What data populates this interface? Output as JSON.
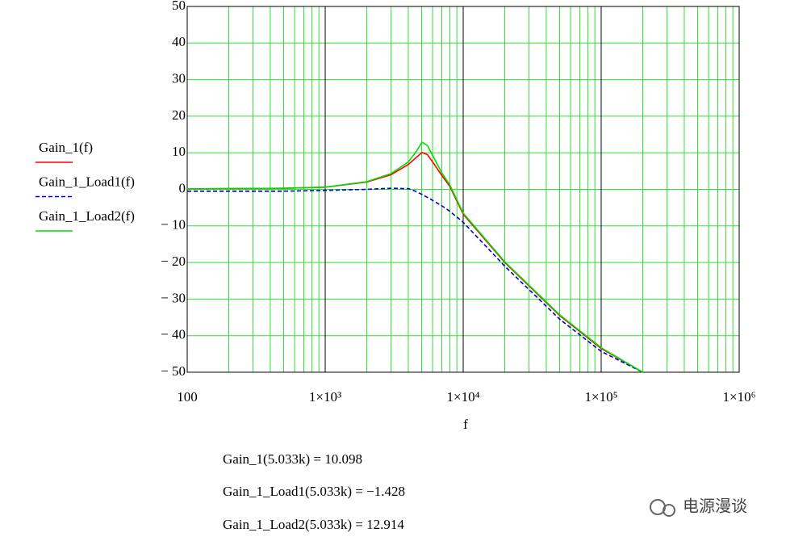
{
  "chart_data": {
    "type": "line",
    "xscale": "log",
    "grid": true,
    "minor_grid": true,
    "xlabel": "f",
    "x": [
      100,
      200,
      500,
      1000,
      2000,
      3000,
      4000,
      4500,
      5033,
      5500,
      6000,
      7000,
      8000,
      10000,
      20000,
      50000,
      100000,
      200000
    ],
    "series": [
      {
        "name": "Gain_1(f)",
        "color": "#ff0000",
        "dash": false,
        "values": [
          0.1,
          0.2,
          0.3,
          0.6,
          2,
          4,
          6.8,
          8.5,
          10.1,
          9.5,
          7.5,
          3.8,
          0.8,
          -6.8,
          -20,
          -34.5,
          -43.5,
          -50
        ]
      },
      {
        "name": "Gain_1_Load1(f)",
        "color": "#0000cc",
        "dash": true,
        "values": [
          -0.5,
          -0.5,
          -0.5,
          -0.3,
          0,
          0.3,
          0.2,
          -0.5,
          -1.4,
          -2.2,
          -3,
          -4.5,
          -6,
          -9,
          -21,
          -35.5,
          -44.3,
          -50
        ]
      },
      {
        "name": "Gain_1_Load2(f)",
        "color": "#00dd00",
        "dash": false,
        "values": [
          0.1,
          0.2,
          0.3,
          0.6,
          2.1,
          4.3,
          7.5,
          10,
          12.9,
          12,
          9.3,
          4.5,
          1.2,
          -6.5,
          -19.8,
          -34.3,
          -43.3,
          -50
        ]
      }
    ],
    "xlim": [
      100,
      1000000
    ],
    "xticks": [
      100,
      {
        "value": 1000,
        "label": "1×10³"
      },
      {
        "value": 10000,
        "label": "1×10⁴"
      },
      {
        "value": 100000,
        "label": "1×10⁵"
      },
      {
        "value": 1000000,
        "label": "1×10⁶"
      }
    ],
    "ylim": [
      -50,
      50
    ],
    "yticks": [
      50,
      40,
      30,
      20,
      10,
      0,
      {
        "value": -10,
        "label": "− 10"
      },
      {
        "value": -20,
        "label": "− 20"
      },
      {
        "value": -30,
        "label": "− 30"
      },
      {
        "value": -40,
        "label": "− 40"
      },
      {
        "value": -50,
        "label": "− 50"
      }
    ],
    "annotations": [
      "Gain_1(5.033k) = 10.098",
      "Gain_1_Load1(5.033k) = −1.428",
      "Gain_1_Load2(5.033k) = 12.914"
    ],
    "watermark": "电源漫谈"
  }
}
